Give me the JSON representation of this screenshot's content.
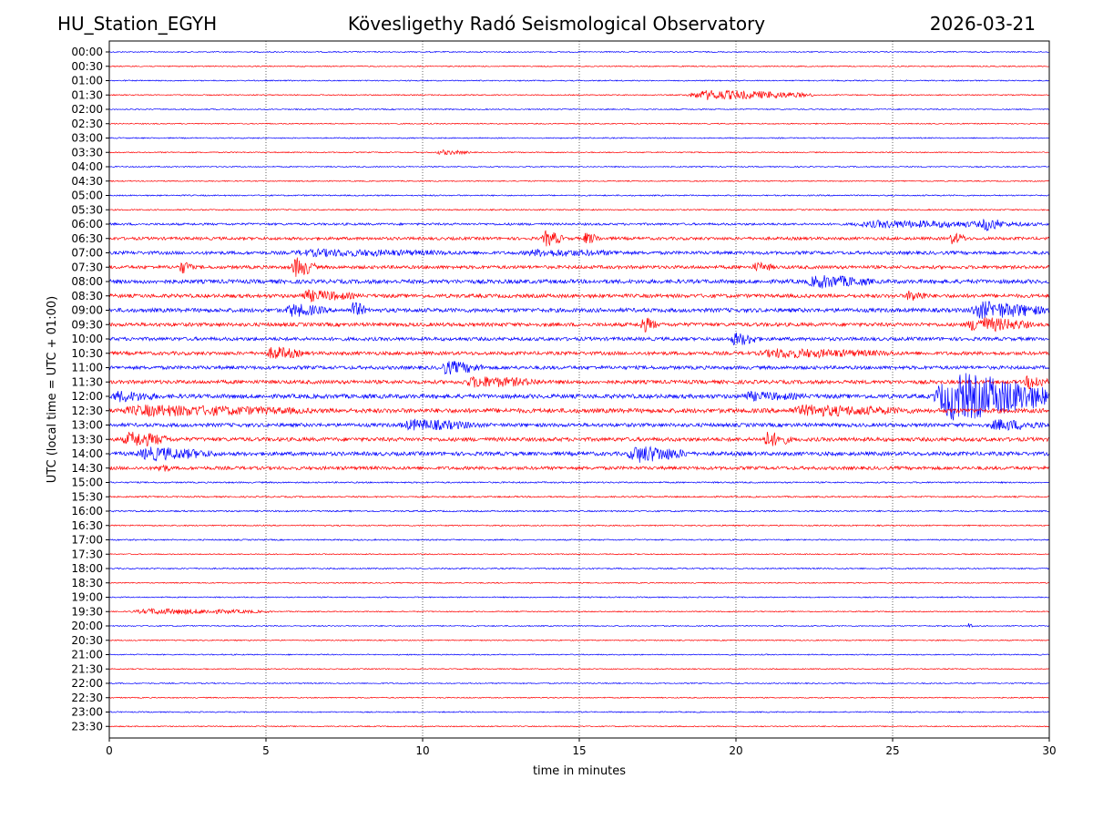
{
  "header": {
    "station": "HU_Station_EGYH",
    "observatory": "Kövesligethy Radó Seismological Observatory",
    "date": "2026-03-21"
  },
  "chart_data": {
    "type": "line",
    "xlabel": "time in minutes",
    "ylabel": "UTC (local time = UTC + 01:00)",
    "xlim": [
      0,
      30
    ],
    "xticks": [
      0,
      5,
      10,
      15,
      20,
      25,
      30
    ],
    "grid": "vertical dotted at x ticks",
    "colors": {
      "even_row": "#0000ff",
      "odd_row": "#ff0000"
    },
    "rows": [
      "00:00",
      "00:30",
      "01:00",
      "01:30",
      "02:00",
      "02:30",
      "03:00",
      "03:30",
      "04:00",
      "04:30",
      "05:00",
      "05:30",
      "06:00",
      "06:30",
      "07:00",
      "07:30",
      "08:00",
      "08:30",
      "09:00",
      "09:30",
      "10:00",
      "10:30",
      "11:00",
      "11:30",
      "12:00",
      "12:30",
      "13:00",
      "13:30",
      "14:00",
      "14:30",
      "15:00",
      "15:30",
      "16:00",
      "16:30",
      "17:00",
      "17:30",
      "18:00",
      "18:30",
      "19:00",
      "19:30",
      "20:00",
      "20:30",
      "21:00",
      "21:30",
      "22:00",
      "22:30",
      "23:00",
      "23:30"
    ],
    "row_noise": [
      0.6,
      0.6,
      0.6,
      0.6,
      0.6,
      0.6,
      0.6,
      0.6,
      0.6,
      0.6,
      0.7,
      0.7,
      1.2,
      1.6,
      1.8,
      1.8,
      2.2,
      2.0,
      2.2,
      2.0,
      1.9,
      1.9,
      1.9,
      2.0,
      2.3,
      2.4,
      2.0,
      2.1,
      2.1,
      1.8,
      0.8,
      0.8,
      0.8,
      0.7,
      0.7,
      0.6,
      0.7,
      0.6,
      0.6,
      0.6,
      0.6,
      0.6,
      0.6,
      0.6,
      0.6,
      0.6,
      0.6,
      0.6
    ],
    "events": [
      {
        "row": "01:30",
        "start": 18.4,
        "end": 22.5,
        "amp": 5
      },
      {
        "row": "03:30",
        "start": 10.4,
        "end": 11.6,
        "amp": 2.5
      },
      {
        "row": "06:00",
        "start": 23.5,
        "end": 30,
        "amp": 4
      },
      {
        "row": "06:00",
        "start": 27.8,
        "end": 28.6,
        "amp": 7
      },
      {
        "row": "06:30",
        "start": 13.8,
        "end": 14.5,
        "amp": 8
      },
      {
        "row": "06:30",
        "start": 15.1,
        "end": 15.7,
        "amp": 6
      },
      {
        "row": "06:30",
        "start": 26.8,
        "end": 27.4,
        "amp": 6
      },
      {
        "row": "07:00",
        "start": 5.5,
        "end": 12,
        "amp": 4
      },
      {
        "row": "07:00",
        "start": 13,
        "end": 17,
        "amp": 4
      },
      {
        "row": "07:30",
        "start": 2.2,
        "end": 2.7,
        "amp": 7
      },
      {
        "row": "07:30",
        "start": 5.8,
        "end": 6.6,
        "amp": 10
      },
      {
        "row": "07:30",
        "start": 20.5,
        "end": 21.3,
        "amp": 5
      },
      {
        "row": "08:00",
        "start": 22.2,
        "end": 24.5,
        "amp": 7
      },
      {
        "row": "08:30",
        "start": 6,
        "end": 8,
        "amp": 6
      },
      {
        "row": "08:30",
        "start": 25.4,
        "end": 26.2,
        "amp": 6
      },
      {
        "row": "09:00",
        "start": 5.6,
        "end": 7,
        "amp": 7
      },
      {
        "row": "09:00",
        "start": 7.7,
        "end": 8.2,
        "amp": 9
      },
      {
        "row": "09:00",
        "start": 27.4,
        "end": 30,
        "amp": 9
      },
      {
        "row": "09:30",
        "start": 16.9,
        "end": 17.5,
        "amp": 8
      },
      {
        "row": "09:30",
        "start": 27.3,
        "end": 29.5,
        "amp": 8
      },
      {
        "row": "10:00",
        "start": 19.8,
        "end": 20.8,
        "amp": 7
      },
      {
        "row": "10:30",
        "start": 5,
        "end": 6.2,
        "amp": 7
      },
      {
        "row": "10:30",
        "start": 20.5,
        "end": 25.5,
        "amp": 5
      },
      {
        "row": "11:00",
        "start": 10.5,
        "end": 12,
        "amp": 7
      },
      {
        "row": "11:30",
        "start": 11.2,
        "end": 14,
        "amp": 6
      },
      {
        "row": "11:30",
        "start": 29.2,
        "end": 30,
        "amp": 8
      },
      {
        "row": "12:00",
        "start": 0,
        "end": 1.7,
        "amp": 6
      },
      {
        "row": "12:00",
        "start": 26.3,
        "end": 30,
        "amp": 24
      },
      {
        "row": "12:00",
        "start": 20,
        "end": 22.5,
        "amp": 5
      },
      {
        "row": "12:30",
        "start": 0,
        "end": 7,
        "amp": 6
      },
      {
        "row": "12:30",
        "start": 21.5,
        "end": 26,
        "amp": 6
      },
      {
        "row": "13:00",
        "start": 9.2,
        "end": 12,
        "amp": 6
      },
      {
        "row": "13:00",
        "start": 28,
        "end": 30,
        "amp": 6
      },
      {
        "row": "13:30",
        "start": 0.4,
        "end": 2,
        "amp": 8
      },
      {
        "row": "13:30",
        "start": 20.8,
        "end": 21.8,
        "amp": 8
      },
      {
        "row": "14:00",
        "start": 0.8,
        "end": 3.5,
        "amp": 7
      },
      {
        "row": "14:00",
        "start": 16.5,
        "end": 18.5,
        "amp": 9
      },
      {
        "row": "14:30",
        "start": 1.5,
        "end": 2.0,
        "amp": 5
      },
      {
        "row": "19:30",
        "start": 0.6,
        "end": 5.2,
        "amp": 3
      },
      {
        "row": "20:00",
        "start": 27.4,
        "end": 27.6,
        "amp": 3
      }
    ]
  }
}
